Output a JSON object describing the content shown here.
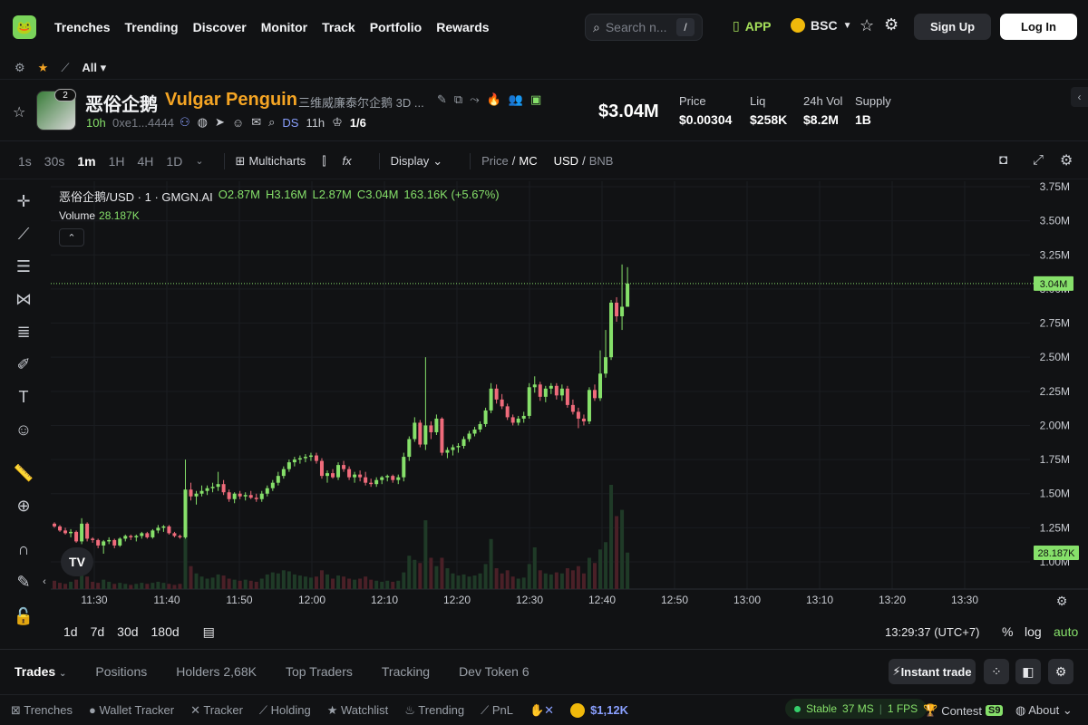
{
  "nav": {
    "logo": "🐸",
    "items": [
      "Trenches",
      "Trending",
      "Discover",
      "Monitor",
      "Track",
      "Portfolio",
      "Rewards"
    ],
    "search_placeholder": "Search n...",
    "search_shortcut": "/",
    "app_label": "APP",
    "chain_label": "BSC",
    "signup_label": "Sign Up",
    "login_label": "Log In"
  },
  "subbar": {
    "filter_label": "All"
  },
  "token": {
    "symbol": "恶俗企鹅",
    "name": "Vulgar Penguin",
    "chinese_name": "三维威廉泰尔企鹅 3D ...",
    "avatar_badge": "2",
    "age": "10h",
    "address": "0xe1...4444",
    "ds_label": "DS",
    "ds_age": "11h",
    "ratio": "1/6",
    "market_cap": "$3.04M",
    "stats": [
      {
        "label": "Price",
        "value": "$0.00304"
      },
      {
        "label": "Liq",
        "value": "$258K"
      },
      {
        "label": "24h Vol",
        "value": "$8.2M"
      },
      {
        "label": "Supply",
        "value": "1B"
      }
    ]
  },
  "chart_toolbar": {
    "timeframes": [
      "1s",
      "30s",
      "1m",
      "1H",
      "4H",
      "1D"
    ],
    "active_timeframe": "1m",
    "multicharts_label": "Multicharts",
    "display_label": "Display",
    "price_label": "Price",
    "mc_label": "MC",
    "usd_label": "USD",
    "bnb_label": "BNB"
  },
  "legend": {
    "pair": "恶俗企鹅/USD · 1 · GMGN.AI",
    "open": "O2.87M",
    "high": "H3.16M",
    "low": "L2.87M",
    "close": "C3.04M",
    "change": "163.16K (+5.67%)",
    "volume_label": "Volume",
    "volume_value": "28.187K"
  },
  "chart_data": {
    "type": "candlestick",
    "y_axis_ticks": [
      "3.75M",
      "3.50M",
      "3.25M",
      "3.00M",
      "2.75M",
      "2.50M",
      "2.25M",
      "2.00M",
      "1.75M",
      "1.50M",
      "1.25M",
      "1.00M"
    ],
    "y_range": [
      1.0,
      3.75
    ],
    "x_axis_ticks": [
      "11:30",
      "11:40",
      "11:50",
      "12:00",
      "12:10",
      "12:20",
      "12:30",
      "12:40",
      "12:50",
      "13:00",
      "13:10",
      "13:20",
      "13:30"
    ],
    "current_price_label": "3.04M",
    "current_price": 3.04,
    "volume_label_value": "28.187K",
    "colors": {
      "up": "#86e06a",
      "down": "#ef6b7b",
      "up_vol": "#1f3a27",
      "down_vol": "#4a2027"
    },
    "candles": [
      [
        1.28,
        1.29,
        1.25,
        1.26
      ],
      [
        1.26,
        1.27,
        1.22,
        1.23
      ],
      [
        1.23,
        1.25,
        1.2,
        1.21
      ],
      [
        1.21,
        1.24,
        1.18,
        1.22
      ],
      [
        1.22,
        1.23,
        1.14,
        1.15
      ],
      [
        1.15,
        1.32,
        1.13,
        1.28
      ],
      [
        1.28,
        1.29,
        1.15,
        1.17
      ],
      [
        1.17,
        1.18,
        1.14,
        1.16
      ],
      [
        1.16,
        1.17,
        1.1,
        1.12
      ],
      [
        1.12,
        1.16,
        1.06,
        1.15
      ],
      [
        1.15,
        1.18,
        1.13,
        1.16
      ],
      [
        1.16,
        1.17,
        1.1,
        1.12
      ],
      [
        1.12,
        1.18,
        1.11,
        1.17
      ],
      [
        1.17,
        1.2,
        1.15,
        1.19
      ],
      [
        1.19,
        1.2,
        1.16,
        1.18
      ],
      [
        1.18,
        1.2,
        1.15,
        1.19
      ],
      [
        1.19,
        1.22,
        1.17,
        1.21
      ],
      [
        1.21,
        1.22,
        1.17,
        1.18
      ],
      [
        1.18,
        1.24,
        1.17,
        1.23
      ],
      [
        1.23,
        1.27,
        1.21,
        1.25
      ],
      [
        1.25,
        1.27,
        1.22,
        1.26
      ],
      [
        1.26,
        1.27,
        1.2,
        1.21
      ],
      [
        1.21,
        1.22,
        1.18,
        1.19
      ],
      [
        1.19,
        1.2,
        1.17,
        1.18
      ],
      [
        1.18,
        1.75,
        1.17,
        1.53
      ],
      [
        1.53,
        1.58,
        1.45,
        1.48
      ],
      [
        1.48,
        1.52,
        1.42,
        1.5
      ],
      [
        1.5,
        1.56,
        1.48,
        1.52
      ],
      [
        1.52,
        1.56,
        1.49,
        1.54
      ],
      [
        1.54,
        1.58,
        1.51,
        1.55
      ],
      [
        1.55,
        1.66,
        1.52,
        1.57
      ],
      [
        1.57,
        1.6,
        1.49,
        1.51
      ],
      [
        1.51,
        1.53,
        1.44,
        1.46
      ],
      [
        1.46,
        1.51,
        1.43,
        1.5
      ],
      [
        1.5,
        1.52,
        1.46,
        1.48
      ],
      [
        1.48,
        1.51,
        1.45,
        1.49
      ],
      [
        1.49,
        1.52,
        1.46,
        1.47
      ],
      [
        1.47,
        1.5,
        1.44,
        1.46
      ],
      [
        1.46,
        1.52,
        1.44,
        1.5
      ],
      [
        1.5,
        1.56,
        1.48,
        1.54
      ],
      [
        1.54,
        1.6,
        1.52,
        1.58
      ],
      [
        1.58,
        1.66,
        1.56,
        1.63
      ],
      [
        1.63,
        1.7,
        1.61,
        1.68
      ],
      [
        1.68,
        1.75,
        1.66,
        1.73
      ],
      [
        1.73,
        1.77,
        1.7,
        1.75
      ],
      [
        1.75,
        1.78,
        1.72,
        1.76
      ],
      [
        1.76,
        1.79,
        1.73,
        1.77
      ],
      [
        1.77,
        1.8,
        1.74,
        1.78
      ],
      [
        1.78,
        1.8,
        1.72,
        1.74
      ],
      [
        1.74,
        1.76,
        1.61,
        1.63
      ],
      [
        1.63,
        1.67,
        1.58,
        1.65
      ],
      [
        1.65,
        1.68,
        1.61,
        1.62
      ],
      [
        1.62,
        1.73,
        1.6,
        1.71
      ],
      [
        1.71,
        1.74,
        1.66,
        1.68
      ],
      [
        1.68,
        1.7,
        1.6,
        1.62
      ],
      [
        1.62,
        1.66,
        1.58,
        1.64
      ],
      [
        1.64,
        1.67,
        1.59,
        1.62
      ],
      [
        1.62,
        1.66,
        1.56,
        1.58
      ],
      [
        1.58,
        1.61,
        1.55,
        1.57
      ],
      [
        1.57,
        1.62,
        1.55,
        1.6
      ],
      [
        1.6,
        1.63,
        1.57,
        1.62
      ],
      [
        1.62,
        1.64,
        1.59,
        1.63
      ],
      [
        1.63,
        1.64,
        1.58,
        1.6
      ],
      [
        1.6,
        1.64,
        1.57,
        1.62
      ],
      [
        1.62,
        1.8,
        1.59,
        1.77
      ],
      [
        1.77,
        1.92,
        1.74,
        1.9
      ],
      [
        1.9,
        2.06,
        1.88,
        2.02
      ],
      [
        2.02,
        2.04,
        1.84,
        1.86
      ],
      [
        1.86,
        2.5,
        1.82,
        2.0
      ],
      [
        2.0,
        2.03,
        1.9,
        1.95
      ],
      [
        1.95,
        2.08,
        1.93,
        2.05
      ],
      [
        2.05,
        2.06,
        1.78,
        1.8
      ],
      [
        1.8,
        1.84,
        1.76,
        1.82
      ],
      [
        1.82,
        1.86,
        1.78,
        1.84
      ],
      [
        1.84,
        1.87,
        1.8,
        1.85
      ],
      [
        1.85,
        1.92,
        1.83,
        1.9
      ],
      [
        1.9,
        1.96,
        1.88,
        1.94
      ],
      [
        1.94,
        1.99,
        1.92,
        1.97
      ],
      [
        1.97,
        2.03,
        1.95,
        2.01
      ],
      [
        2.01,
        2.13,
        1.99,
        2.11
      ],
      [
        2.11,
        2.31,
        2.09,
        2.27
      ],
      [
        2.27,
        2.3,
        2.16,
        2.19
      ],
      [
        2.19,
        2.23,
        2.12,
        2.14
      ],
      [
        2.14,
        2.16,
        2.04,
        2.06
      ],
      [
        2.06,
        2.08,
        2.0,
        2.02
      ],
      [
        2.02,
        2.07,
        2.0,
        2.05
      ],
      [
        2.05,
        2.1,
        2.02,
        2.07
      ],
      [
        2.07,
        2.31,
        2.05,
        2.28
      ],
      [
        2.28,
        2.36,
        2.24,
        2.3
      ],
      [
        2.3,
        2.32,
        2.18,
        2.21
      ],
      [
        2.21,
        2.29,
        2.17,
        2.27
      ],
      [
        2.27,
        2.31,
        2.23,
        2.29
      ],
      [
        2.29,
        2.31,
        2.19,
        2.22
      ],
      [
        2.22,
        2.3,
        2.18,
        2.27
      ],
      [
        2.27,
        2.29,
        2.13,
        2.15
      ],
      [
        2.15,
        2.19,
        2.08,
        2.1
      ],
      [
        2.1,
        2.13,
        1.98,
        2.05
      ],
      [
        2.05,
        2.08,
        2.0,
        2.03
      ],
      [
        2.03,
        2.28,
        2.01,
        2.26
      ],
      [
        2.26,
        2.3,
        2.18,
        2.2
      ],
      [
        2.2,
        2.55,
        2.18,
        2.38
      ],
      [
        2.38,
        2.7,
        2.35,
        2.5
      ],
      [
        2.5,
        2.92,
        2.48,
        2.9
      ],
      [
        2.9,
        2.94,
        2.76,
        2.8
      ],
      [
        2.8,
        3.18,
        2.7,
        2.87
      ],
      [
        2.87,
        3.16,
        2.87,
        3.04
      ]
    ],
    "volumes": [
      0.08,
      0.06,
      0.05,
      0.07,
      0.09,
      0.25,
      0.12,
      0.07,
      0.06,
      0.09,
      0.07,
      0.05,
      0.06,
      0.05,
      0.04,
      0.05,
      0.06,
      0.05,
      0.06,
      0.07,
      0.06,
      0.05,
      0.04,
      0.05,
      0.62,
      0.22,
      0.15,
      0.12,
      0.1,
      0.11,
      0.14,
      0.13,
      0.1,
      0.09,
      0.08,
      0.09,
      0.08,
      0.07,
      0.1,
      0.14,
      0.16,
      0.15,
      0.18,
      0.17,
      0.14,
      0.13,
      0.12,
      0.11,
      0.12,
      0.18,
      0.14,
      0.1,
      0.13,
      0.12,
      0.1,
      0.09,
      0.1,
      0.12,
      0.09,
      0.08,
      0.07,
      0.08,
      0.07,
      0.08,
      0.16,
      0.32,
      0.28,
      0.25,
      0.66,
      0.3,
      0.22,
      0.3,
      0.2,
      0.15,
      0.13,
      0.14,
      0.12,
      0.13,
      0.15,
      0.24,
      0.48,
      0.2,
      0.15,
      0.18,
      0.12,
      0.1,
      0.11,
      0.24,
      0.4,
      0.18,
      0.15,
      0.14,
      0.16,
      0.15,
      0.2,
      0.18,
      0.22,
      0.15,
      0.3,
      0.25,
      0.38,
      0.45,
      1.0,
      0.7,
      0.76,
      0.35
    ]
  },
  "range": {
    "items": [
      "1d",
      "7d",
      "30d",
      "180d"
    ],
    "clock": "13:29:37 (UTC+7)",
    "pct": "%",
    "log": "log",
    "auto": "auto"
  },
  "tabs": {
    "items": [
      "Trades",
      "Positions",
      "Holders 2,68K",
      "Top Traders",
      "Tracking",
      "Dev Token 6"
    ],
    "active": "Trades",
    "instant_label": "Instant trade"
  },
  "status": {
    "items": [
      "Trenches",
      "Wallet Tracker",
      "Tracker",
      "Holding",
      "Watchlist",
      "Trending",
      "PnL"
    ],
    "balance": "$1,12K",
    "stable_label": "Stable",
    "ms": "37 MS",
    "fps": "1 FPS",
    "contest_label": "Contest",
    "contest_badge": "S9",
    "about_label": "About"
  }
}
